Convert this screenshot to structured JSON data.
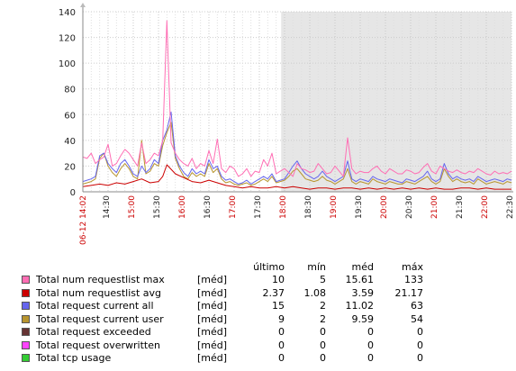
{
  "chart_data": {
    "type": "line",
    "ylim": [
      0,
      140
    ],
    "yticks": [
      "0",
      "20",
      "40",
      "60",
      "80",
      "100",
      "120",
      "140"
    ],
    "xticks": [
      {
        "label": "06-12 14:02",
        "red": true
      },
      {
        "label": "14:30",
        "red": false
      },
      {
        "label": "15:00",
        "red": true
      },
      {
        "label": "15:30",
        "red": false
      },
      {
        "label": "16:00",
        "red": true
      },
      {
        "label": "16:30",
        "red": false
      },
      {
        "label": "17:00",
        "red": true
      },
      {
        "label": "17:30",
        "red": false
      },
      {
        "label": "18:00",
        "red": true
      },
      {
        "label": "18:30",
        "red": false
      },
      {
        "label": "19:00",
        "red": true
      },
      {
        "label": "19:30",
        "red": false
      },
      {
        "label": "20:00",
        "red": true
      },
      {
        "label": "20:30",
        "red": false
      },
      {
        "label": "21:00",
        "red": true
      },
      {
        "label": "21:30",
        "red": false
      },
      {
        "label": "22:00",
        "red": true
      },
      {
        "label": "22:30",
        "red": false
      }
    ],
    "x_start_min": 0,
    "x_end_min": 510,
    "shaded_from_min": 236,
    "grid": true,
    "series": [
      {
        "name": "Total num requestlist max",
        "color": "#ff6eb4",
        "x": [
          0,
          5,
          10,
          15,
          20,
          25,
          30,
          35,
          40,
          45,
          50,
          55,
          60,
          65,
          70,
          75,
          80,
          85,
          90,
          95,
          100,
          105,
          110,
          115,
          120,
          125,
          130,
          135,
          140,
          145,
          150,
          155,
          160,
          165,
          170,
          175,
          180,
          185,
          190,
          195,
          200,
          205,
          210,
          215,
          220,
          225,
          230,
          235,
          240,
          245,
          250,
          255,
          260,
          265,
          270,
          275,
          280,
          285,
          290,
          295,
          300,
          305,
          310,
          315,
          320,
          325,
          330,
          335,
          340,
          345,
          350,
          355,
          360,
          365,
          370,
          375,
          380,
          385,
          390,
          395,
          400,
          405,
          410,
          415,
          420,
          425,
          430,
          435,
          440,
          445,
          450,
          455,
          460,
          465,
          470,
          475,
          480,
          485,
          490,
          495,
          500,
          505,
          510
        ],
        "values": [
          27,
          26,
          30,
          22,
          25,
          27,
          37,
          20,
          22,
          28,
          33,
          30,
          25,
          20,
          38,
          22,
          25,
          30,
          28,
          40,
          133,
          38,
          30,
          25,
          22,
          20,
          26,
          18,
          22,
          20,
          32,
          22,
          41,
          18,
          15,
          20,
          18,
          12,
          14,
          18,
          12,
          16,
          15,
          25,
          20,
          30,
          14,
          16,
          18,
          15,
          12,
          22,
          18,
          17,
          15,
          16,
          22,
          18,
          14,
          15,
          20,
          16,
          12,
          42,
          18,
          14,
          16,
          15,
          15,
          18,
          20,
          16,
          14,
          18,
          16,
          14,
          14,
          17,
          16,
          14,
          15,
          19,
          22,
          16,
          14,
          20,
          18,
          16,
          15,
          17,
          15,
          14,
          16,
          15,
          18,
          16,
          14,
          13,
          16,
          14,
          15,
          14,
          16
        ]
      },
      {
        "name": "Total num requestlist avg",
        "color": "#cc0000",
        "x": [
          0,
          10,
          20,
          30,
          40,
          50,
          60,
          70,
          80,
          90,
          95,
          100,
          110,
          120,
          130,
          140,
          150,
          160,
          170,
          180,
          190,
          200,
          210,
          220,
          230,
          240,
          250,
          260,
          270,
          280,
          290,
          300,
          310,
          320,
          330,
          340,
          350,
          360,
          370,
          380,
          390,
          400,
          410,
          420,
          430,
          440,
          450,
          460,
          470,
          480,
          490,
          500,
          510
        ],
        "values": [
          4,
          5,
          6,
          5,
          7,
          6,
          8,
          10,
          7,
          8,
          12,
          21,
          14,
          11,
          8,
          7,
          9,
          7,
          5,
          4,
          3,
          4,
          3,
          3,
          4,
          3,
          4,
          3,
          2,
          3,
          3,
          2,
          3,
          3,
          2,
          3,
          2,
          3,
          2,
          3,
          2,
          3,
          2,
          3,
          2,
          2,
          3,
          3,
          2,
          3,
          2,
          2,
          2
        ]
      },
      {
        "name": "Total request current all",
        "color": "#6666ee",
        "x": [
          0,
          5,
          10,
          15,
          20,
          25,
          30,
          35,
          40,
          45,
          50,
          55,
          60,
          65,
          70,
          75,
          80,
          85,
          90,
          95,
          100,
          105,
          110,
          115,
          120,
          125,
          130,
          135,
          140,
          145,
          150,
          155,
          160,
          165,
          170,
          175,
          180,
          185,
          190,
          195,
          200,
          205,
          210,
          215,
          220,
          225,
          230,
          235,
          240,
          245,
          250,
          255,
          260,
          265,
          270,
          275,
          280,
          285,
          290,
          295,
          300,
          305,
          310,
          315,
          320,
          325,
          330,
          335,
          340,
          345,
          350,
          355,
          360,
          365,
          370,
          375,
          380,
          385,
          390,
          395,
          400,
          405,
          410,
          415,
          420,
          425,
          430,
          435,
          440,
          445,
          450,
          455,
          460,
          465,
          470,
          475,
          480,
          485,
          490,
          495,
          500,
          505,
          510
        ],
        "values": [
          8,
          9,
          10,
          12,
          28,
          30,
          22,
          18,
          15,
          22,
          25,
          20,
          14,
          12,
          20,
          15,
          18,
          25,
          22,
          40,
          48,
          62,
          28,
          20,
          15,
          12,
          18,
          14,
          16,
          14,
          25,
          18,
          20,
          12,
          9,
          10,
          8,
          6,
          7,
          9,
          6,
          8,
          10,
          12,
          10,
          14,
          8,
          9,
          10,
          15,
          20,
          24,
          18,
          14,
          12,
          10,
          12,
          16,
          12,
          10,
          8,
          10,
          12,
          24,
          10,
          8,
          10,
          9,
          8,
          12,
          10,
          9,
          8,
          10,
          9,
          8,
          7,
          10,
          9,
          8,
          10,
          12,
          16,
          10,
          8,
          10,
          22,
          14,
          10,
          12,
          10,
          9,
          10,
          8,
          12,
          10,
          8,
          9,
          10,
          9,
          8,
          10,
          9
        ]
      },
      {
        "name": "Total request current user",
        "color": "#b8952f",
        "x": [
          0,
          5,
          10,
          15,
          20,
          25,
          30,
          35,
          40,
          45,
          50,
          55,
          60,
          65,
          70,
          75,
          80,
          85,
          90,
          95,
          100,
          105,
          110,
          115,
          120,
          125,
          130,
          135,
          140,
          145,
          150,
          155,
          160,
          165,
          170,
          175,
          180,
          185,
          190,
          195,
          200,
          205,
          210,
          215,
          220,
          225,
          230,
          235,
          240,
          245,
          250,
          255,
          260,
          265,
          270,
          275,
          280,
          285,
          290,
          295,
          300,
          305,
          310,
          315,
          320,
          325,
          330,
          335,
          340,
          345,
          350,
          355,
          360,
          365,
          370,
          375,
          380,
          385,
          390,
          395,
          400,
          405,
          410,
          415,
          420,
          425,
          430,
          435,
          440,
          445,
          450,
          455,
          460,
          465,
          470,
          475,
          480,
          485,
          490,
          495,
          500,
          505,
          510
        ],
        "values": [
          6,
          7,
          8,
          10,
          26,
          30,
          20,
          15,
          12,
          18,
          22,
          18,
          12,
          10,
          40,
          14,
          16,
          22,
          20,
          36,
          46,
          54,
          26,
          18,
          12,
          10,
          15,
          12,
          14,
          12,
          22,
          15,
          18,
          10,
          7,
          8,
          6,
          5,
          6,
          7,
          5,
          6,
          8,
          10,
          8,
          12,
          7,
          8,
          9,
          12,
          16,
          18,
          14,
          10,
          9,
          8,
          9,
          12,
          9,
          8,
          6,
          8,
          10,
          18,
          8,
          6,
          8,
          7,
          6,
          10,
          8,
          7,
          6,
          8,
          7,
          6,
          6,
          8,
          7,
          6,
          8,
          10,
          12,
          8,
          6,
          8,
          18,
          12,
          8,
          10,
          8,
          7,
          8,
          6,
          10,
          8,
          6,
          7,
          8,
          7,
          6,
          8,
          7
        ]
      },
      {
        "name": "Total request exceeded",
        "color": "#663333",
        "x": [
          0,
          510
        ],
        "values": [
          0,
          0
        ]
      },
      {
        "name": "Total request overwritten",
        "color": "#ff44ff",
        "x": [
          0,
          510
        ],
        "values": [
          0,
          0
        ]
      },
      {
        "name": "Total tcp usage",
        "color": "#33cc33",
        "x": [
          0,
          510
        ],
        "values": [
          0,
          0
        ]
      }
    ]
  },
  "legend": {
    "headers": {
      "last": "último",
      "min": "mín",
      "avg": "méd",
      "max": "máx"
    },
    "func_label": "[méd]",
    "rows": [
      {
        "name": "Total num requestlist max",
        "color": "#ff6eb4",
        "last": "10",
        "min": "5",
        "avg": "15.61",
        "max": "133"
      },
      {
        "name": "Total num requestlist avg",
        "color": "#cc0000",
        "last": "2.37",
        "min": "1.08",
        "avg": "3.59",
        "max": "21.17"
      },
      {
        "name": "Total request current all",
        "color": "#6666ee",
        "last": "15",
        "min": "2",
        "avg": "11.02",
        "max": "63"
      },
      {
        "name": "Total request current user",
        "color": "#b8952f",
        "last": "9",
        "min": "2",
        "avg": "9.59",
        "max": "54"
      },
      {
        "name": "Total request exceeded",
        "color": "#663333",
        "last": "0",
        "min": "0",
        "avg": "0",
        "max": "0"
      },
      {
        "name": "Total request overwritten",
        "color": "#ff44ff",
        "last": "0",
        "min": "0",
        "avg": "0",
        "max": "0"
      },
      {
        "name": "Total tcp usage",
        "color": "#33cc33",
        "last": "0",
        "min": "0",
        "avg": "0",
        "max": "0"
      }
    ]
  }
}
